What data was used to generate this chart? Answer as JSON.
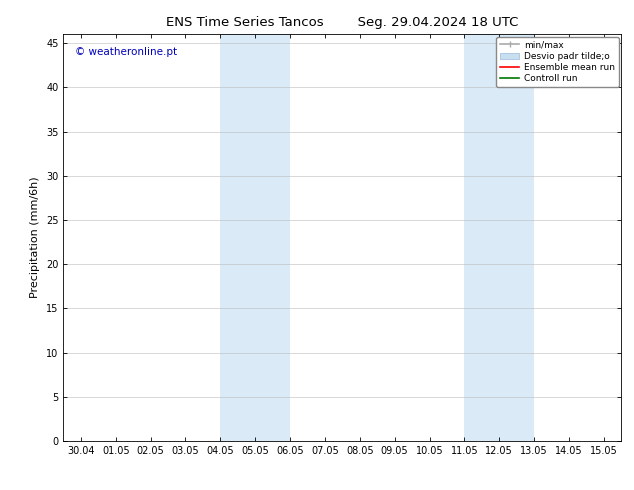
{
  "title_left": "ENS Time Series Tancos",
  "title_right": "Seg. 29.04.2024 18 UTC",
  "ylabel": "Precipitation (mm/6h)",
  "watermark": "© weatheronline.pt",
  "watermark_color": "#0000bb",
  "ylim": [
    0,
    46
  ],
  "yticks": [
    0,
    5,
    10,
    15,
    20,
    25,
    30,
    35,
    40,
    45
  ],
  "xtick_labels": [
    "30.04",
    "01.05",
    "02.05",
    "03.05",
    "04.05",
    "05.05",
    "06.05",
    "07.05",
    "08.05",
    "09.05",
    "10.05",
    "11.05",
    "12.05",
    "13.05",
    "14.05",
    "15.05"
  ],
  "shaded_regions": [
    {
      "xstart": 4.0,
      "xend": 6.0,
      "color": "#daeaf7"
    },
    {
      "xstart": 11.0,
      "xend": 13.0,
      "color": "#daeaf7"
    }
  ],
  "legend_labels": [
    "min/max",
    "Desvio padr tilde;o",
    "Ensemble mean run",
    "Controll run"
  ],
  "minmax_color": "#aaaaaa",
  "desvio_color": "#c8dff0",
  "ensemble_color": "#ff0000",
  "controll_color": "#007700",
  "bg_color": "#ffffff",
  "border_color": "#000000",
  "grid_color": "#bbbbbb",
  "title_fontsize": 9.5,
  "tick_fontsize": 7,
  "ylabel_fontsize": 8,
  "watermark_fontsize": 7.5
}
